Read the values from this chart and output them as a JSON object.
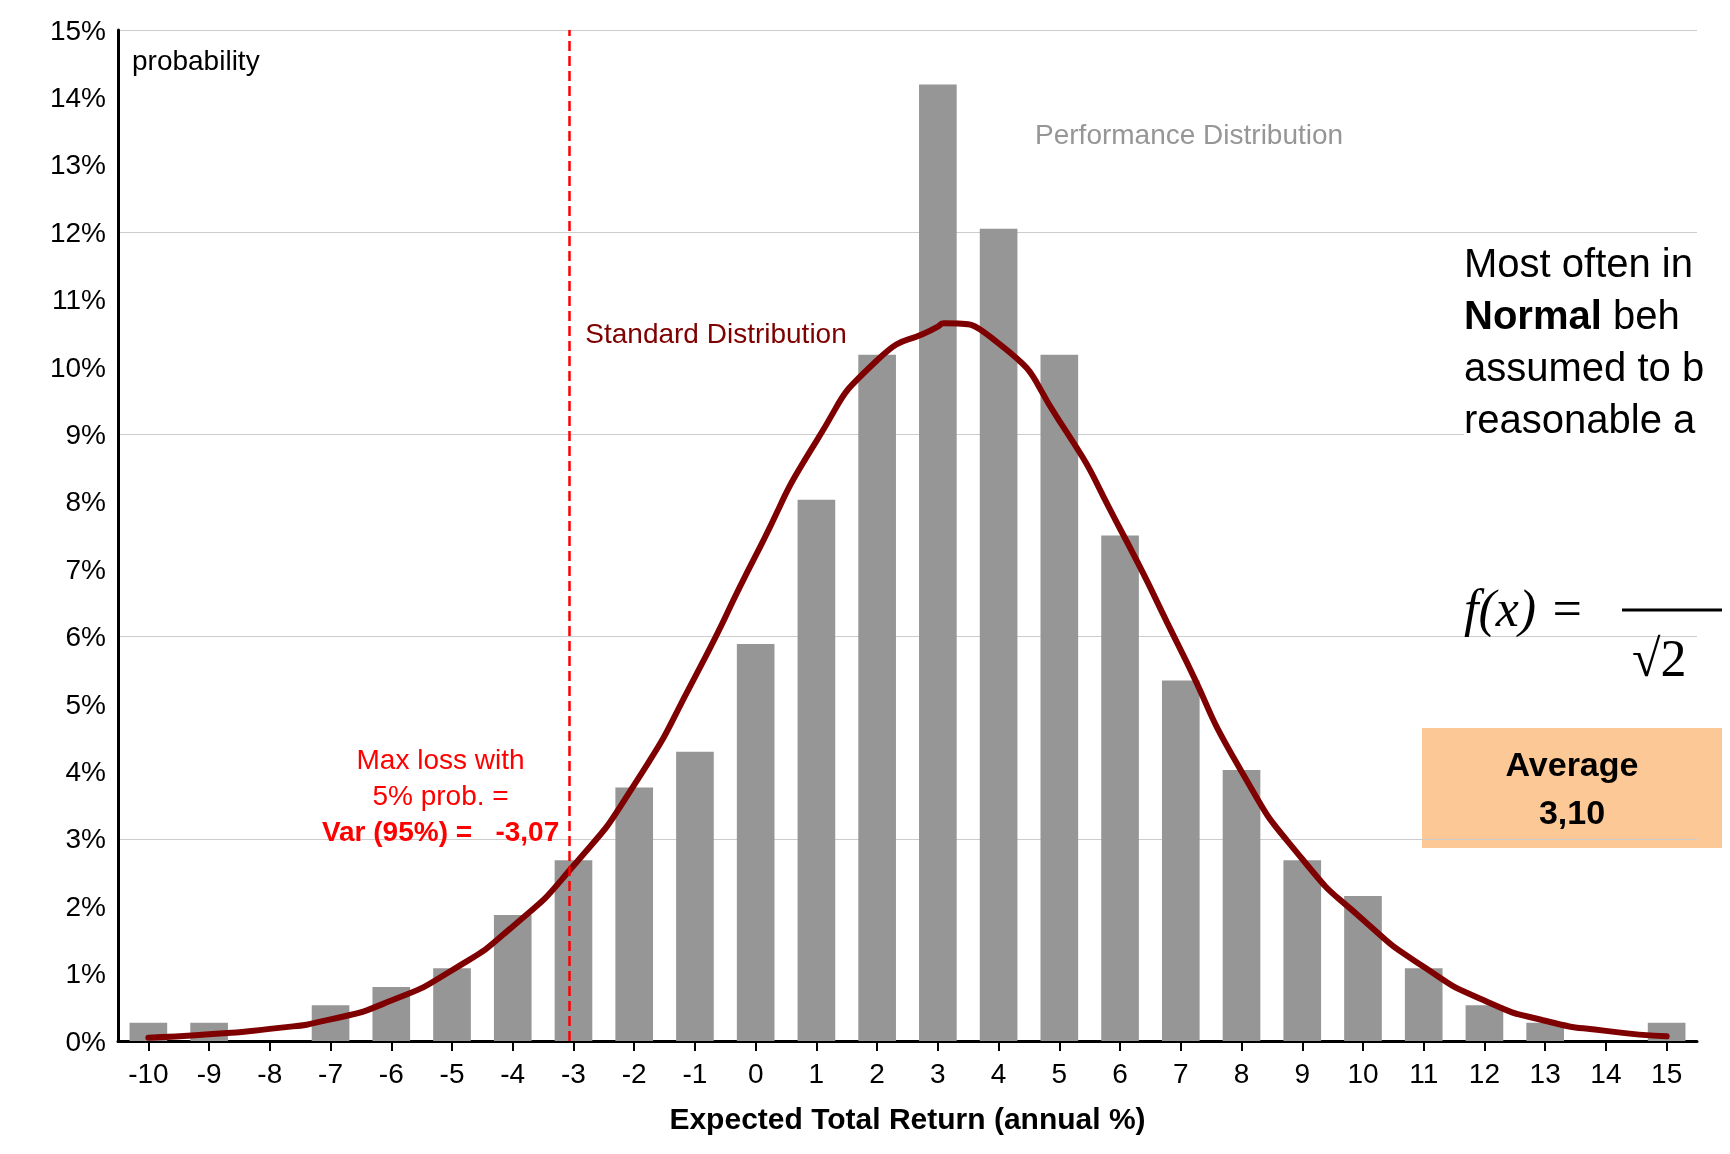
{
  "chart_data": {
    "type": "bar",
    "xlabel": "Expected Total Return (annual %)",
    "ylabel": "probability",
    "x": [
      -10,
      -9,
      -8,
      -7,
      -6,
      -5,
      -4,
      -3,
      -2,
      -1,
      0,
      1,
      2,
      3,
      4,
      5,
      6,
      7,
      8,
      9,
      10,
      11,
      12,
      13,
      14,
      15
    ],
    "series": [
      {
        "name": "Performance Distribution",
        "color": "#969696",
        "values": [
          0.27,
          0.27,
          0,
          0.53,
          0.8,
          1.08,
          1.87,
          2.68,
          3.76,
          4.29,
          5.89,
          8.03,
          10.18,
          14.19,
          12.05,
          10.18,
          7.5,
          5.35,
          4.02,
          2.68,
          2.15,
          1.08,
          0.53,
          0.27,
          0,
          0.27
        ]
      },
      {
        "name": "Standard Distribution",
        "type": "line",
        "color": "#7f0000",
        "x": [
          -10,
          -9,
          -8,
          -7,
          -6,
          -5,
          -4,
          -3,
          -2,
          -1,
          0,
          1,
          2,
          3,
          3.1,
          4,
          5,
          6,
          7,
          8,
          9,
          10,
          11,
          12,
          13,
          14,
          15
        ],
        "values": [
          0.05,
          0.1,
          0.18,
          0.32,
          0.6,
          1.05,
          1.7,
          2.6,
          3.8,
          5.4,
          7.2,
          8.9,
          10.1,
          10.6,
          10.65,
          10.35,
          9.2,
          7.6,
          5.8,
          4.0,
          2.7,
          1.8,
          1.1,
          0.6,
          0.3,
          0.15,
          0.07
        ]
      }
    ],
    "xlim": [
      -10.5,
      15.5
    ],
    "ylim": [
      0,
      15
    ],
    "xticks": [
      -10,
      -9,
      -8,
      -7,
      -6,
      -5,
      -4,
      -3,
      -2,
      -1,
      0,
      1,
      2,
      3,
      4,
      5,
      6,
      7,
      8,
      9,
      10,
      11,
      12,
      13,
      14,
      15
    ],
    "yticks": [
      {
        "value": 0,
        "label": "0%"
      },
      {
        "value": 1,
        "label": "1%"
      },
      {
        "value": 2,
        "label": "2%"
      },
      {
        "value": 3,
        "label": "3%"
      },
      {
        "value": 4,
        "label": "4%"
      },
      {
        "value": 5,
        "label": "5%"
      },
      {
        "value": 6,
        "label": "6%"
      },
      {
        "value": 7,
        "label": "7%"
      },
      {
        "value": 8,
        "label": "8%"
      },
      {
        "value": 9,
        "label": "9%"
      },
      {
        "value": 10,
        "label": "10%"
      },
      {
        "value": 11,
        "label": "11%"
      },
      {
        "value": 12,
        "label": "12%"
      },
      {
        "value": 13,
        "label": "13%"
      },
      {
        "value": 14,
        "label": "14%"
      },
      {
        "value": 15,
        "label": "15%"
      }
    ],
    "grid": "y",
    "legend": false,
    "marker": "none",
    "ref_lines": [
      {
        "axis": "x",
        "value": -3.07,
        "label": "Max loss with\n5% prob. =\nVar (95%) =   -3,07",
        "color": "#ff0000",
        "line_style": "dashed"
      }
    ],
    "annotations": [
      "Most often in\nNormal beh\nassumed to b\nreasonable a",
      "f(x) =",
      "√2",
      "Average\n3,10"
    ]
  }
}
